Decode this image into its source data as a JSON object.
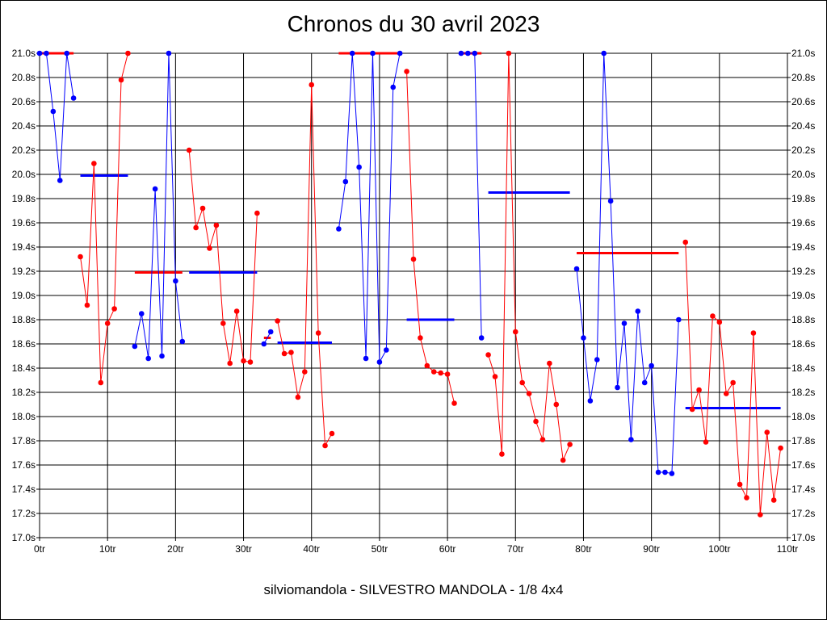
{
  "title": "Chronos du 30 avril 2023",
  "subtitle": "silviomandola - SILVESTRO MANDOLA - 1/8 4x4",
  "colors": {
    "red": "#ff0000",
    "blue": "#0000ff",
    "grid": "#000000"
  },
  "chart_data": {
    "type": "line",
    "title": "Chronos du 30 avril 2023",
    "xlabel": "",
    "ylabel": "",
    "xlim": [
      0,
      110
    ],
    "ylim": [
      17.0,
      21.0
    ],
    "grid": true,
    "x_ticks": [
      "0tr",
      "10tr",
      "20tr",
      "30tr",
      "40tr",
      "50tr",
      "60tr",
      "70tr",
      "80tr",
      "90tr",
      "100tr",
      "110tr"
    ],
    "y_ticks": [
      "17.0s",
      "17.2s",
      "17.4s",
      "17.6s",
      "17.8s",
      "18.0s",
      "18.2s",
      "18.4s",
      "18.6s",
      "18.8s",
      "19.0s",
      "19.2s",
      "19.4s",
      "19.6s",
      "19.8s",
      "20.0s",
      "20.2s",
      "20.4s",
      "20.6s",
      "20.8s",
      "21.0s"
    ],
    "series": [
      {
        "color": "#0000ff",
        "x": [
          0,
          1,
          2,
          3,
          4,
          5
        ],
        "y": [
          21.0,
          21.0,
          20.52,
          19.95,
          21.0,
          20.63
        ],
        "avg": 21.0,
        "avg_range": [
          0,
          5
        ],
        "avg_color": "#ff0000"
      },
      {
        "color": "#ff0000",
        "x": [
          6,
          7,
          8,
          9,
          10,
          11,
          12,
          13
        ],
        "y": [
          19.32,
          18.92,
          20.09,
          18.28,
          18.77,
          18.89,
          20.78,
          21.0
        ],
        "avg": 19.99,
        "avg_range": [
          6,
          13
        ],
        "avg_color": "#0000ff"
      },
      {
        "color": "#0000ff",
        "x": [
          14,
          15,
          16,
          17,
          18,
          19,
          20,
          21
        ],
        "y": [
          18.58,
          18.85,
          18.48,
          19.88,
          18.5,
          21.0,
          19.12,
          18.62
        ],
        "avg": 19.19,
        "avg_range": [
          14,
          21
        ],
        "avg_color": "#ff0000"
      },
      {
        "color": "#ff0000",
        "x": [
          22,
          23,
          24,
          25,
          26,
          27,
          28,
          29,
          30,
          31,
          32
        ],
        "y": [
          20.2,
          19.56,
          19.72,
          19.39,
          19.58,
          18.77,
          18.44,
          18.87,
          18.46,
          18.45,
          19.68
        ],
        "avg": 19.19,
        "avg_range": [
          22,
          32
        ],
        "avg_color": "#0000ff"
      },
      {
        "color": "#0000ff",
        "x": [
          33,
          34
        ],
        "y": [
          18.6,
          18.7
        ],
        "avg": 18.65,
        "avg_range": [
          33,
          34
        ],
        "avg_color": "#ff0000"
      },
      {
        "color": "#ff0000",
        "x": [
          35,
          36,
          37,
          38,
          39,
          40,
          41,
          42,
          43
        ],
        "y": [
          18.79,
          18.52,
          18.53,
          18.16,
          18.37,
          20.74,
          18.69,
          17.76,
          17.86
        ],
        "avg": 18.61,
        "avg_range": [
          35,
          43
        ],
        "avg_color": "#0000ff"
      },
      {
        "color": "#0000ff",
        "x": [
          44,
          45,
          46,
          47,
          48,
          49,
          50,
          51,
          52,
          53
        ],
        "y": [
          19.55,
          19.94,
          21.0,
          20.06,
          18.48,
          21.0,
          18.45,
          18.55,
          20.72,
          21.0
        ],
        "avg": 21.0,
        "avg_range": [
          44,
          53
        ],
        "avg_color": "#ff0000"
      },
      {
        "color": "#ff0000",
        "x": [
          54,
          55,
          56,
          57,
          58,
          59,
          60,
          61
        ],
        "y": [
          20.85,
          19.3,
          18.65,
          18.42,
          18.37,
          18.36,
          18.35,
          18.11
        ],
        "avg": 18.8,
        "avg_range": [
          54,
          61
        ],
        "avg_color": "#0000ff"
      },
      {
        "color": "#0000ff",
        "x": [
          62,
          63,
          64,
          65
        ],
        "y": [
          21.0,
          21.0,
          21.0,
          18.65
        ],
        "avg": 21.0,
        "avg_range": [
          62,
          65
        ],
        "avg_color": "#ff0000"
      },
      {
        "color": "#ff0000",
        "x": [
          66,
          67,
          68,
          69,
          70,
          71,
          72,
          73,
          74,
          75,
          76,
          77,
          78
        ],
        "y": [
          18.51,
          18.33,
          17.69,
          21.0,
          18.7,
          18.28,
          18.19,
          17.96,
          17.81,
          18.44,
          18.1,
          17.64,
          17.77
        ],
        "avg": 19.85,
        "avg_range": [
          66,
          78
        ],
        "avg_color": "#0000ff"
      },
      {
        "color": "#0000ff",
        "x": [
          79,
          80,
          81,
          82,
          83,
          84,
          85,
          86,
          87,
          88,
          89,
          90,
          91,
          92,
          93,
          94
        ],
        "y": [
          19.22,
          18.65,
          18.13,
          18.47,
          21.0,
          19.78,
          18.24,
          18.77,
          17.81,
          18.87,
          18.28,
          18.42,
          17.54,
          17.54,
          17.53,
          18.8
        ],
        "avg": 19.35,
        "avg_range": [
          79,
          94
        ],
        "avg_color": "#ff0000"
      },
      {
        "color": "#ff0000",
        "x": [
          95,
          96,
          97,
          98,
          99,
          100,
          101,
          102,
          103,
          104,
          105,
          106,
          107,
          108,
          109
        ],
        "y": [
          19.44,
          18.06,
          18.22,
          17.79,
          18.83,
          18.78,
          18.19,
          18.28,
          17.44,
          17.33,
          18.69,
          17.19,
          17.87,
          17.31,
          17.74
        ],
        "avg": 18.07,
        "avg_range": [
          95,
          109
        ],
        "avg_color": "#0000ff"
      }
    ]
  }
}
